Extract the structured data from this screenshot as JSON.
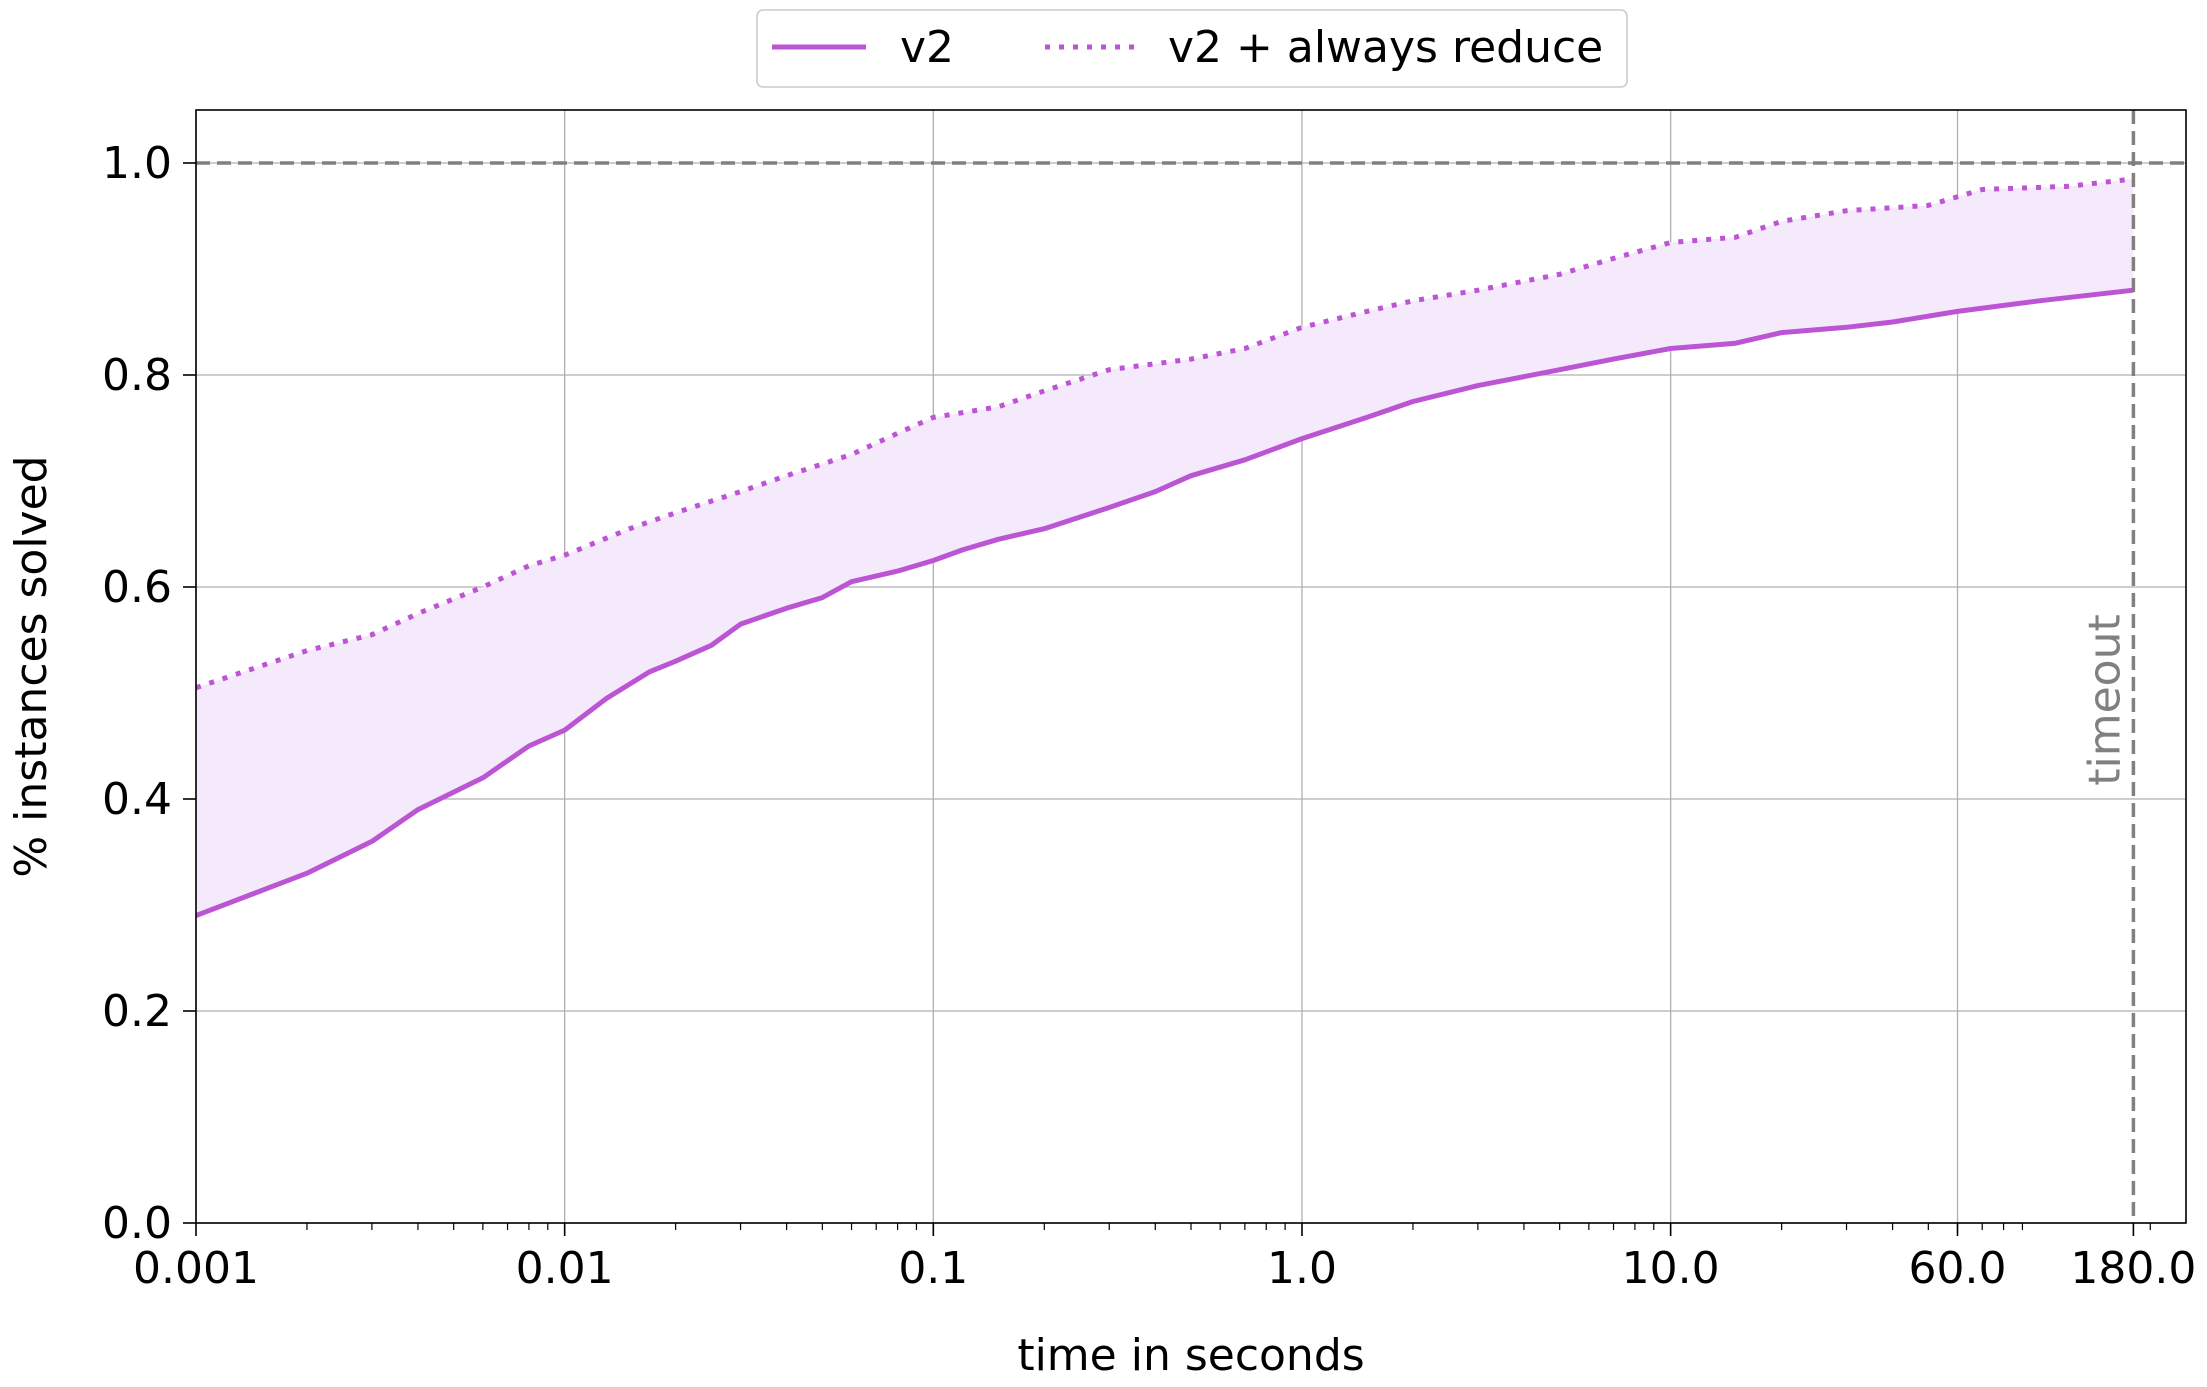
{
  "chart_data": {
    "type": "line",
    "xscale": "log",
    "xlim": [
      0.001,
      250
    ],
    "ylim": [
      0.0,
      1.05
    ],
    "grid": true,
    "xlabel": "time in seconds",
    "ylabel": "% instances solved",
    "x_ticks": [
      0.001,
      0.01,
      0.1,
      1.0,
      10.0,
      60.0,
      180.0
    ],
    "x_tick_labels": [
      "0.001",
      "0.01",
      "0.1",
      "1.0",
      "10.0",
      "60.0",
      "180.0"
    ],
    "y_ticks": [
      0.0,
      0.2,
      0.4,
      0.6,
      0.8,
      1.0
    ],
    "y_tick_labels": [
      "0.0",
      "0.2",
      "0.4",
      "0.6",
      "0.8",
      "1.0"
    ],
    "legend_position": "top-center",
    "reference_lines": {
      "horizontal_y": 1.0,
      "vertical_x": 180.0,
      "vertical_label": "timeout",
      "color": "#808080"
    },
    "fill_between_series": true,
    "fill_color": "#f5eafb",
    "series": [
      {
        "name": "v2",
        "style": "solid",
        "color": "#bb55d4",
        "x": [
          0.001,
          0.002,
          0.003,
          0.004,
          0.006,
          0.008,
          0.01,
          0.013,
          0.017,
          0.02,
          0.025,
          0.03,
          0.04,
          0.05,
          0.06,
          0.08,
          0.1,
          0.12,
          0.15,
          0.2,
          0.3,
          0.4,
          0.5,
          0.7,
          1.0,
          1.5,
          2.0,
          3.0,
          5.0,
          7.0,
          10.0,
          15.0,
          20.0,
          30.0,
          40.0,
          60.0,
          100.0,
          180.0
        ],
        "y": [
          0.29,
          0.33,
          0.36,
          0.39,
          0.42,
          0.45,
          0.465,
          0.495,
          0.52,
          0.53,
          0.545,
          0.565,
          0.58,
          0.59,
          0.605,
          0.615,
          0.625,
          0.635,
          0.645,
          0.655,
          0.675,
          0.69,
          0.705,
          0.72,
          0.74,
          0.76,
          0.775,
          0.79,
          0.805,
          0.815,
          0.825,
          0.83,
          0.84,
          0.845,
          0.85,
          0.86,
          0.87,
          0.88
        ]
      },
      {
        "name": "v2 + always reduce",
        "style": "dotted",
        "color": "#bb55d4",
        "x": [
          0.001,
          0.002,
          0.003,
          0.004,
          0.006,
          0.008,
          0.01,
          0.015,
          0.02,
          0.03,
          0.04,
          0.06,
          0.08,
          0.1,
          0.15,
          0.2,
          0.3,
          0.5,
          0.7,
          1.0,
          1.5,
          2.0,
          3.0,
          5.0,
          7.0,
          10.0,
          15.0,
          20.0,
          30.0,
          50.0,
          70.0,
          120.0,
          180.0
        ],
        "y": [
          0.505,
          0.54,
          0.555,
          0.575,
          0.6,
          0.62,
          0.63,
          0.655,
          0.67,
          0.69,
          0.705,
          0.725,
          0.745,
          0.76,
          0.77,
          0.785,
          0.805,
          0.815,
          0.825,
          0.845,
          0.86,
          0.87,
          0.88,
          0.895,
          0.91,
          0.925,
          0.93,
          0.945,
          0.955,
          0.96,
          0.975,
          0.978,
          0.985
        ]
      }
    ]
  }
}
